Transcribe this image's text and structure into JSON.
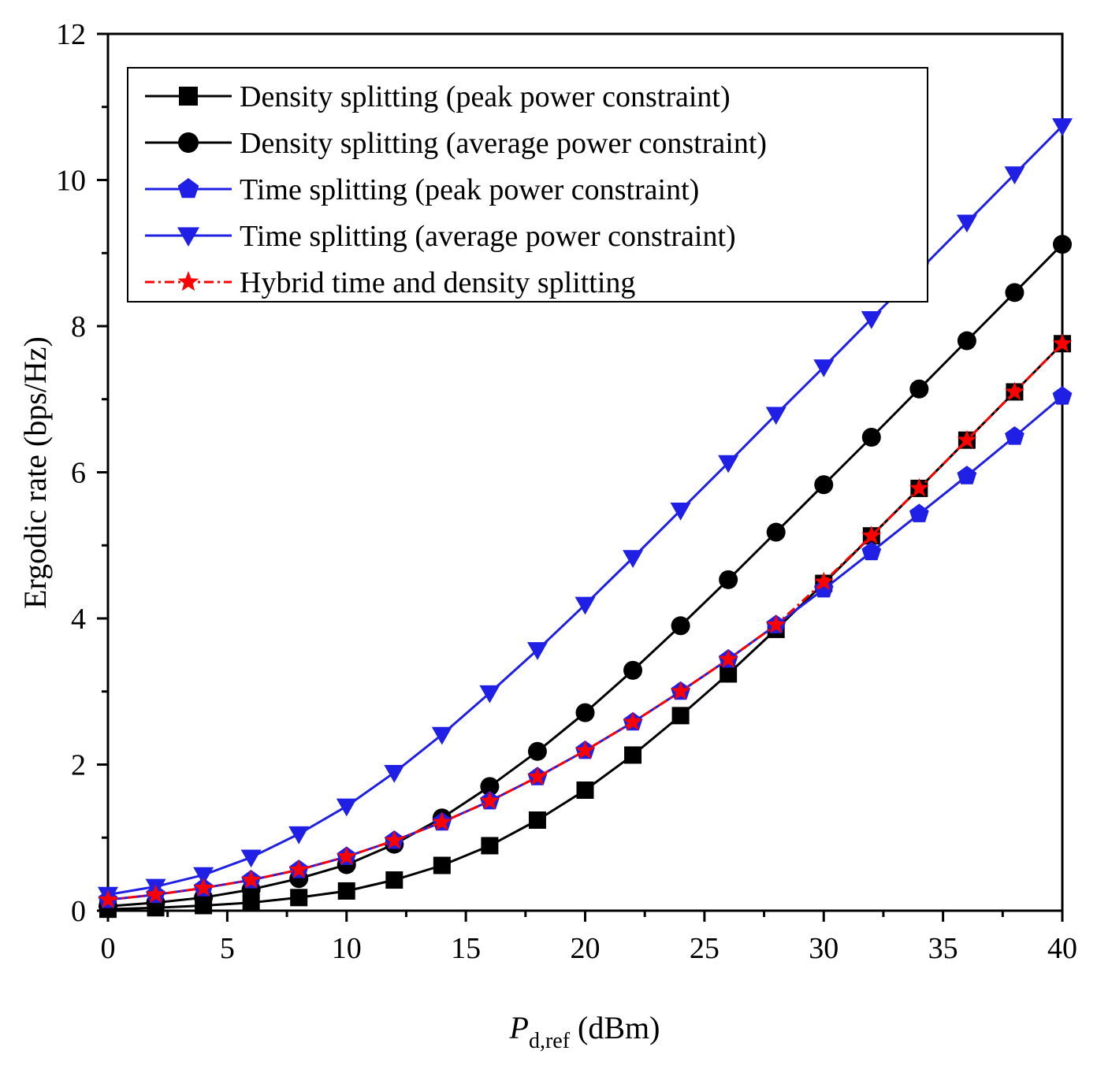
{
  "chart_data": {
    "type": "line",
    "title": "",
    "xlabel_main": "P",
    "xlabel_sub": "d,ref",
    "xlabel_unit": "(dBm)",
    "ylabel": "Ergodic rate (bps/Hz)",
    "xlim": [
      0,
      40
    ],
    "ylim": [
      0,
      12
    ],
    "xticks": [
      0,
      5,
      10,
      15,
      20,
      25,
      30,
      35,
      40
    ],
    "xtick_labels": [
      "0",
      "5",
      "10",
      "15",
      "20",
      "25",
      "30",
      "35",
      "40"
    ],
    "yticks": [
      0,
      2,
      4,
      6,
      8,
      10,
      12
    ],
    "ytick_labels": [
      "0",
      "2",
      "4",
      "6",
      "8",
      "10",
      "12"
    ],
    "grid": false,
    "legend_position": "top-left",
    "x": [
      0,
      2,
      4,
      6,
      8,
      10,
      12,
      14,
      16,
      18,
      20,
      22,
      24,
      26,
      28,
      30,
      32,
      34,
      36,
      38,
      40
    ],
    "series": [
      {
        "name": "Density splitting (peak power constraint)",
        "color": "#000000",
        "marker": "square",
        "dash": "solid",
        "values": [
          0.02,
          0.04,
          0.07,
          0.11,
          0.18,
          0.27,
          0.42,
          0.62,
          0.89,
          1.24,
          1.65,
          2.13,
          2.67,
          3.24,
          3.85,
          4.48,
          5.13,
          5.78,
          6.44,
          7.1,
          7.76
        ]
      },
      {
        "name": "Density splitting (average power constraint)",
        "color": "#000000",
        "marker": "circle",
        "dash": "solid",
        "values": [
          0.06,
          0.11,
          0.18,
          0.29,
          0.44,
          0.63,
          0.91,
          1.27,
          1.7,
          2.18,
          2.71,
          3.29,
          3.9,
          4.53,
          5.18,
          5.83,
          6.48,
          7.14,
          7.8,
          8.46,
          9.12
        ]
      },
      {
        "name": "Time splitting (peak power constraint)",
        "color": "#1f1fe6",
        "marker": "pentagon",
        "dash": "solid",
        "values": [
          0.15,
          0.22,
          0.31,
          0.42,
          0.56,
          0.74,
          0.96,
          1.21,
          1.5,
          1.83,
          2.19,
          2.58,
          3.0,
          3.44,
          3.91,
          4.4,
          4.91,
          5.43,
          5.95,
          6.49,
          7.04
        ]
      },
      {
        "name": "Time splitting (average power constraint)",
        "color": "#1f1fe6",
        "marker": "triangle-down",
        "dash": "solid",
        "values": [
          0.22,
          0.33,
          0.49,
          0.73,
          1.05,
          1.43,
          1.89,
          2.41,
          2.98,
          3.57,
          4.19,
          4.83,
          5.48,
          6.13,
          6.79,
          7.44,
          8.1,
          8.76,
          9.42,
          10.08,
          10.74
        ]
      },
      {
        "name": "Hybrid time and density splitting",
        "color": "#ff0000",
        "marker": "star",
        "dash": "dashdot",
        "values": [
          0.15,
          0.22,
          0.31,
          0.42,
          0.56,
          0.74,
          0.96,
          1.21,
          1.5,
          1.83,
          2.19,
          2.58,
          3.0,
          3.44,
          3.91,
          4.5,
          5.13,
          5.78,
          6.44,
          7.1,
          7.76
        ]
      }
    ]
  }
}
